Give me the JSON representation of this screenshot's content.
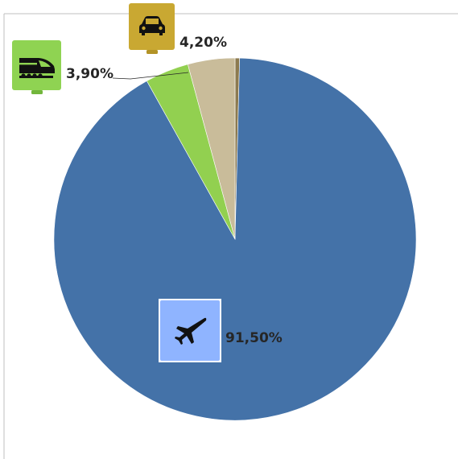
{
  "chart_data": {
    "type": "pie",
    "slices": [
      {
        "icon": "car-icon",
        "value": 4.2,
        "label": "4,20%",
        "color": "#c9bc9a",
        "icon_bg": "#c9a832"
      },
      {
        "icon": "train-icon",
        "value": 3.9,
        "label": "3,90%",
        "color": "#92d050",
        "icon_bg": "#8fd352"
      },
      {
        "icon": "airplane-icon",
        "value": 91.5,
        "label": "91,50%",
        "color": "#4472a8",
        "icon_bg": "#8fb4ff"
      },
      {
        "icon": "other-slice",
        "value": 0.4,
        "label": "",
        "color": "#8c7a4f"
      }
    ],
    "legend": "none"
  }
}
